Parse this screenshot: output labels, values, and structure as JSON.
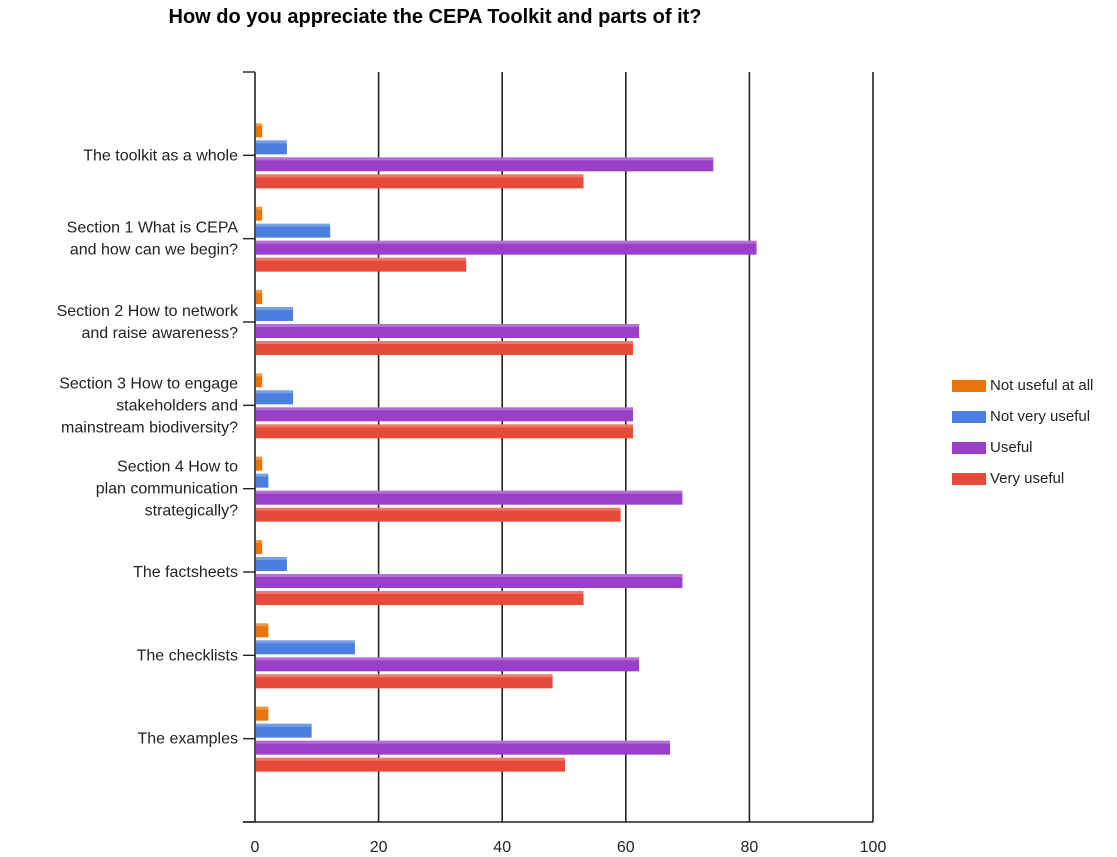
{
  "chart_data": {
    "type": "bar",
    "orientation": "horizontal",
    "title": "How do you appreciate the CEPA Toolkit and parts of it?",
    "xlabel": "",
    "ylabel": "",
    "xlim": [
      0,
      100
    ],
    "xticks": [
      "0",
      "20",
      "40",
      "60",
      "80",
      "100"
    ],
    "grid": true,
    "legend_position": "right",
    "categories": [
      [
        "The toolkit as a whole"
      ],
      [
        "Section 1 What is CEPA",
        "and how can we begin?"
      ],
      [
        "Section 2 How to network",
        "and raise awareness?"
      ],
      [
        "Section 3 How to engage",
        "stakeholders and",
        "mainstream biodiversity?"
      ],
      [
        "Section 4 How to",
        "plan communication",
        "strategically?"
      ],
      [
        "The factsheets"
      ],
      [
        "The checklists"
      ],
      [
        "The examples"
      ]
    ],
    "series": [
      {
        "name": "Not useful at all",
        "color": "#E8750C",
        "values": [
          1,
          1,
          1,
          1,
          1,
          1,
          2,
          2
        ]
      },
      {
        "name": "Not very useful",
        "color": "#4A7FE0",
        "values": [
          5,
          12,
          6,
          6,
          2,
          5,
          16,
          9
        ]
      },
      {
        "name": "Useful",
        "color": "#9A3FC8",
        "values": [
          74,
          81,
          62,
          61,
          69,
          69,
          62,
          67
        ]
      },
      {
        "name": "Very useful",
        "color": "#E84A3A",
        "values": [
          53,
          34,
          61,
          61,
          59,
          53,
          48,
          50
        ]
      }
    ]
  }
}
